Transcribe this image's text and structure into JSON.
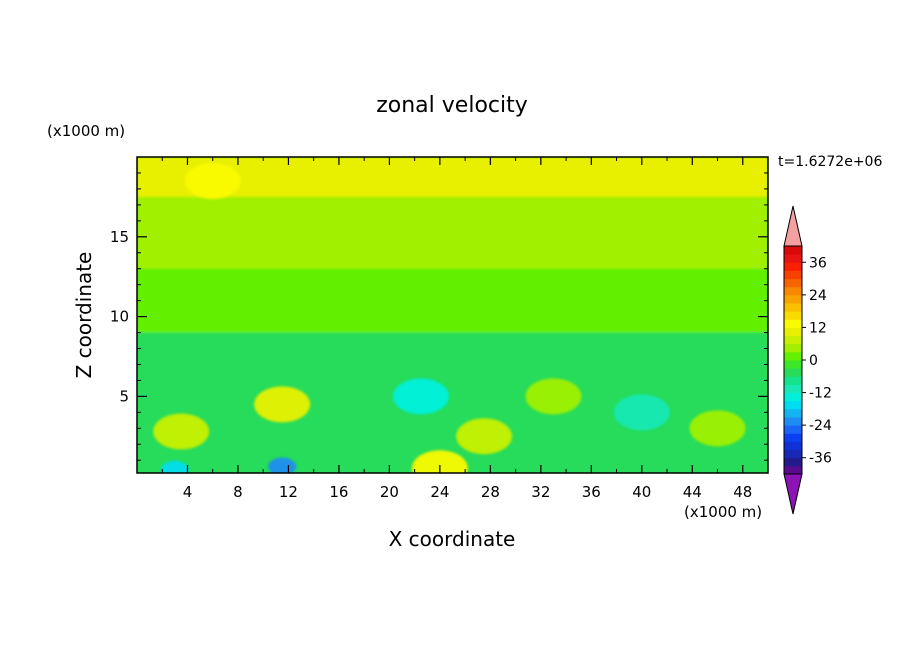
{
  "chart_data": {
    "type": "heatmap",
    "title": "zonal velocity",
    "xlabel": "X coordinate",
    "ylabel": "Z coordinate",
    "x_unit": "(x1000 m)",
    "y_unit": "(x1000 m)",
    "time_label": "t=1.6272e+06",
    "xlim": [
      0,
      50
    ],
    "ylim": [
      0.2,
      20
    ],
    "x_ticks": [
      4,
      8,
      12,
      16,
      20,
      24,
      28,
      32,
      36,
      40,
      44,
      48
    ],
    "y_ticks": [
      5,
      10,
      15
    ],
    "colorbar": {
      "levels": [
        -42,
        -39,
        -36,
        -33,
        -30,
        -27,
        -24,
        -21,
        -18,
        -15,
        -12,
        -9,
        -6,
        -3,
        0,
        3,
        6,
        9,
        12,
        15,
        18,
        21,
        24,
        27,
        30,
        33,
        36,
        39,
        42
      ],
      "colors": [
        "#5a0a8c",
        "#241a8c",
        "#1828b4",
        "#1030d8",
        "#0a40f0",
        "#1a64f8",
        "#1e8cf0",
        "#14b4f0",
        "#00dcf0",
        "#00f0dc",
        "#18e8b4",
        "#14e48c",
        "#28dc5a",
        "#3ce628",
        "#64f000",
        "#a0f000",
        "#c8f000",
        "#e8f000",
        "#fafa00",
        "#f8dc00",
        "#f8c000",
        "#f8a400",
        "#f88800",
        "#f86400",
        "#f84000",
        "#f82000",
        "#e81414",
        "#d80a0a"
      ],
      "under_color": "#8c14b4",
      "over_color": "#f4a0a0",
      "tick_labels": [
        "36",
        "24",
        "12",
        "0",
        "-12",
        "-24",
        "-36"
      ],
      "tick_values": [
        36,
        24,
        12,
        0,
        -12,
        -24,
        -36
      ]
    },
    "field_description_bands": [
      {
        "z_range": [
          17.5,
          20
        ],
        "value": 10
      },
      {
        "z_range": [
          13,
          17.5
        ],
        "value": 5
      },
      {
        "z_range": [
          9,
          13
        ],
        "value": 2
      },
      {
        "z_range": [
          5,
          9
        ],
        "value": -4
      },
      {
        "z_range": [
          0,
          5
        ],
        "value": -6
      }
    ],
    "features": [
      {
        "x": 11.5,
        "z": 4.5,
        "value": 10
      },
      {
        "x": 3.5,
        "z": 2.8,
        "value": 8
      },
      {
        "x": 24,
        "z": 0.5,
        "value": 12
      },
      {
        "x": 27.5,
        "z": 2.5,
        "value": 6
      },
      {
        "x": 11.5,
        "z": 0.6,
        "value": -22
      },
      {
        "x": 3,
        "z": 0.4,
        "value": -18
      },
      {
        "x": 22.5,
        "z": 5,
        "value": -14
      },
      {
        "x": 40,
        "z": 4,
        "value": -12
      },
      {
        "x": 33,
        "z": 5,
        "value": 4
      },
      {
        "x": 46,
        "z": 3,
        "value": 5
      },
      {
        "x": 6,
        "z": 18.5,
        "value": 14
      }
    ]
  }
}
